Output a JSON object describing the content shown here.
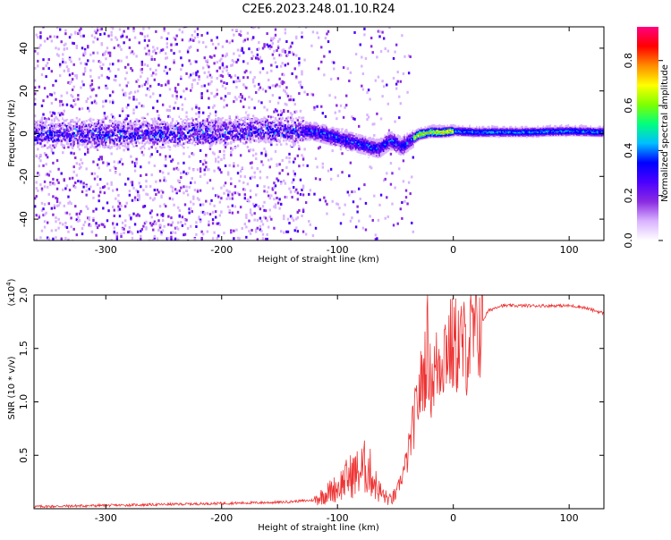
{
  "title": "C2E6.2023.248.01.10.R24",
  "chart_data": [
    {
      "type": "heatmap",
      "xlabel": "Height of straight line (km)",
      "ylabel": "Frequency (Hz)",
      "xlim": [
        -362,
        130
      ],
      "ylim": [
        -50,
        50
      ],
      "xticks": [
        -300,
        -200,
        -100,
        0,
        100
      ],
      "yticks": [
        -40,
        -20,
        0,
        20,
        40
      ],
      "colorbar": {
        "label": "Normalized spectral amplitude",
        "range": [
          0.0,
          0.95
        ],
        "ticks": [
          0.0,
          0.2,
          0.4,
          0.6,
          0.8
        ],
        "tick_labels": [
          "0.0",
          "0.2",
          "0.4",
          "0.6",
          "0.8"
        ],
        "colors": [
          "#ffffff",
          "#d9b3ff",
          "#8a2be2",
          "#4b00ff",
          "#0000ff",
          "#00bfff",
          "#00ff7f",
          "#7fff00",
          "#ffff00",
          "#ff8c00",
          "#ff0000",
          "#ff0080"
        ]
      },
      "ridge": {
        "x": [
          -362,
          -300,
          -250,
          -200,
          -150,
          -120,
          -100,
          -80,
          -65,
          -55,
          -45,
          -38,
          -30,
          -20,
          -10,
          0,
          20,
          60,
          100,
          130
        ],
        "y": [
          0,
          0,
          0.5,
          1,
          2,
          1,
          -2,
          -5,
          -7,
          -3,
          -6,
          -3,
          0,
          1,
          1,
          1.5,
          1,
          1,
          1.5,
          1
        ]
      }
    },
    {
      "type": "line",
      "xlabel": "Height of straight line (km)",
      "ylabel": "SNR (10 * v/v)",
      "yscale_label": "(x10",
      "yscale_exp": "4",
      "yscale_close": ")",
      "xlim": [
        -362,
        130
      ],
      "ylim": [
        0,
        2.0
      ],
      "xticks": [
        -300,
        -200,
        -100,
        0,
        100
      ],
      "yticks": [
        0.5,
        1.0,
        1.5,
        2.0
      ],
      "ytick_labels": [
        "0.5",
        "1.0",
        "1.5",
        "2.0"
      ],
      "color": "#ee3333",
      "series": [
        {
          "name": "SNR",
          "x": [
            -362,
            -300,
            -250,
            -200,
            -150,
            -120,
            -100,
            -90,
            -80,
            -75,
            -70,
            -65,
            -60,
            -55,
            -50,
            -45,
            -40,
            -35,
            -30,
            -25,
            -22,
            -20,
            -15,
            -10,
            -5,
            0,
            5,
            10,
            20,
            30,
            40,
            60,
            80,
            100,
            110,
            120,
            130
          ],
          "y": [
            0.02,
            0.03,
            0.04,
            0.05,
            0.06,
            0.08,
            0.2,
            0.3,
            0.35,
            0.4,
            0.3,
            0.18,
            0.12,
            0.08,
            0.12,
            0.28,
            0.45,
            0.75,
            1.05,
            1.3,
            1.55,
            1.2,
            1.3,
            1.45,
            1.55,
            1.5,
            1.55,
            1.5,
            1.65,
            1.85,
            1.9,
            1.9,
            1.9,
            1.9,
            1.89,
            1.86,
            1.83
          ]
        }
      ]
    }
  ]
}
